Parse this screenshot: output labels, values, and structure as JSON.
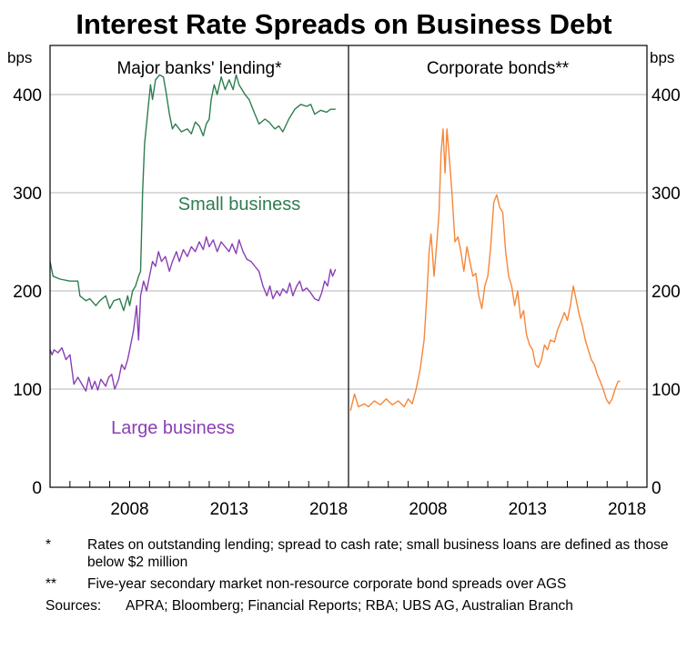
{
  "title": "Interest Rate Spreads on Business Debt",
  "notes": [
    {
      "mark": "*",
      "text": "Rates on outstanding lending; spread to cash rate; small business loans are defined as those below $2 million"
    },
    {
      "mark": "**",
      "text": "Five-year secondary market non-resource corporate bond spreads over AGS"
    }
  ],
  "sources": {
    "label": "Sources:",
    "text": "APRA; Bloomberg; Financial Reports; RBA; UBS AG, Australian Branch"
  },
  "chart_data": [
    {
      "type": "line",
      "title": "Major banks' lending*",
      "ylabel": "bps",
      "ylim": [
        0,
        450
      ],
      "yticks": [
        0,
        100,
        200,
        300,
        400
      ],
      "xlim": [
        2004.0,
        2019.0
      ],
      "xticks": [
        2008,
        2013,
        2018
      ],
      "grid": true,
      "series": [
        {
          "name": "Small business",
          "color": "#2e7d4f",
          "points": [
            [
              2004.0,
              230
            ],
            [
              2004.15,
              215
            ],
            [
              2004.5,
              212
            ],
            [
              2005.0,
              210
            ],
            [
              2005.4,
              210
            ],
            [
              2005.5,
              195
            ],
            [
              2005.8,
              190
            ],
            [
              2006.0,
              192
            ],
            [
              2006.3,
              185
            ],
            [
              2006.5,
              190
            ],
            [
              2006.8,
              195
            ],
            [
              2007.0,
              182
            ],
            [
              2007.2,
              190
            ],
            [
              2007.5,
              192
            ],
            [
              2007.7,
              180
            ],
            [
              2007.9,
              195
            ],
            [
              2008.0,
              185
            ],
            [
              2008.15,
              200
            ],
            [
              2008.3,
              205
            ],
            [
              2008.45,
              215
            ],
            [
              2008.55,
              220
            ],
            [
              2008.65,
              300
            ],
            [
              2008.75,
              350
            ],
            [
              2008.85,
              370
            ],
            [
              2008.95,
              390
            ],
            [
              2009.05,
              410
            ],
            [
              2009.15,
              395
            ],
            [
              2009.3,
              415
            ],
            [
              2009.5,
              420
            ],
            [
              2009.7,
              418
            ],
            [
              2009.85,
              400
            ],
            [
              2010.0,
              380
            ],
            [
              2010.15,
              365
            ],
            [
              2010.3,
              370
            ],
            [
              2010.6,
              362
            ],
            [
              2010.9,
              365
            ],
            [
              2011.1,
              360
            ],
            [
              2011.3,
              372
            ],
            [
              2011.5,
              368
            ],
            [
              2011.7,
              358
            ],
            [
              2011.85,
              370
            ],
            [
              2012.0,
              375
            ],
            [
              2012.1,
              395
            ],
            [
              2012.25,
              410
            ],
            [
              2012.4,
              400
            ],
            [
              2012.6,
              418
            ],
            [
              2012.8,
              405
            ],
            [
              2013.0,
              415
            ],
            [
              2013.2,
              405
            ],
            [
              2013.35,
              420
            ],
            [
              2013.5,
              410
            ],
            [
              2013.8,
              400
            ],
            [
              2014.0,
              395
            ],
            [
              2014.2,
              385
            ],
            [
              2014.5,
              370
            ],
            [
              2014.8,
              375
            ],
            [
              2015.0,
              372
            ],
            [
              2015.3,
              365
            ],
            [
              2015.5,
              368
            ],
            [
              2015.7,
              362
            ],
            [
              2016.0,
              375
            ],
            [
              2016.3,
              385
            ],
            [
              2016.6,
              390
            ],
            [
              2016.9,
              388
            ],
            [
              2017.1,
              390
            ],
            [
              2017.3,
              380
            ],
            [
              2017.6,
              384
            ],
            [
              2017.9,
              382
            ],
            [
              2018.1,
              385
            ],
            [
              2018.35,
              385
            ]
          ]
        },
        {
          "name": "Large business",
          "color": "#8a3fb6",
          "points": [
            [
              2004.0,
              140
            ],
            [
              2004.1,
              135
            ],
            [
              2004.2,
              140
            ],
            [
              2004.4,
              137
            ],
            [
              2004.6,
              142
            ],
            [
              2004.8,
              130
            ],
            [
              2005.0,
              135
            ],
            [
              2005.2,
              105
            ],
            [
              2005.4,
              112
            ],
            [
              2005.6,
              105
            ],
            [
              2005.8,
              98
            ],
            [
              2005.95,
              112
            ],
            [
              2006.1,
              100
            ],
            [
              2006.25,
              108
            ],
            [
              2006.4,
              99
            ],
            [
              2006.55,
              110
            ],
            [
              2006.8,
              103
            ],
            [
              2006.95,
              112
            ],
            [
              2007.1,
              115
            ],
            [
              2007.25,
              100
            ],
            [
              2007.45,
              110
            ],
            [
              2007.6,
              125
            ],
            [
              2007.75,
              120
            ],
            [
              2007.9,
              130
            ],
            [
              2008.0,
              140
            ],
            [
              2008.2,
              160
            ],
            [
              2008.35,
              185
            ],
            [
              2008.45,
              150
            ],
            [
              2008.55,
              195
            ],
            [
              2008.7,
              210
            ],
            [
              2008.85,
              200
            ],
            [
              2009.0,
              215
            ],
            [
              2009.15,
              230
            ],
            [
              2009.3,
              225
            ],
            [
              2009.45,
              240
            ],
            [
              2009.6,
              230
            ],
            [
              2009.8,
              235
            ],
            [
              2010.0,
              220
            ],
            [
              2010.15,
              230
            ],
            [
              2010.35,
              240
            ],
            [
              2010.5,
              230
            ],
            [
              2010.7,
              242
            ],
            [
              2010.9,
              235
            ],
            [
              2011.1,
              245
            ],
            [
              2011.3,
              240
            ],
            [
              2011.5,
              250
            ],
            [
              2011.7,
              242
            ],
            [
              2011.85,
              255
            ],
            [
              2012.0,
              245
            ],
            [
              2012.2,
              252
            ],
            [
              2012.4,
              240
            ],
            [
              2012.6,
              250
            ],
            [
              2012.8,
              245
            ],
            [
              2013.0,
              240
            ],
            [
              2013.15,
              248
            ],
            [
              2013.35,
              238
            ],
            [
              2013.5,
              252
            ],
            [
              2013.7,
              240
            ],
            [
              2013.9,
              232
            ],
            [
              2014.1,
              230
            ],
            [
              2014.3,
              225
            ],
            [
              2014.5,
              220
            ],
            [
              2014.7,
              205
            ],
            [
              2014.9,
              195
            ],
            [
              2015.05,
              205
            ],
            [
              2015.2,
              192
            ],
            [
              2015.4,
              200
            ],
            [
              2015.55,
              195
            ],
            [
              2015.7,
              202
            ],
            [
              2015.9,
              198
            ],
            [
              2016.05,
              208
            ],
            [
              2016.2,
              195
            ],
            [
              2016.4,
              205
            ],
            [
              2016.55,
              210
            ],
            [
              2016.7,
              200
            ],
            [
              2016.9,
              203
            ],
            [
              2017.1,
              198
            ],
            [
              2017.3,
              192
            ],
            [
              2017.5,
              190
            ],
            [
              2017.65,
              198
            ],
            [
              2017.8,
              210
            ],
            [
              2017.95,
              205
            ],
            [
              2018.1,
              222
            ],
            [
              2018.2,
              215
            ],
            [
              2018.35,
              222
            ]
          ]
        }
      ]
    },
    {
      "type": "line",
      "title": "Corporate bonds**",
      "ylabel": "bps",
      "ylim": [
        0,
        450
      ],
      "yticks": [
        0,
        100,
        200,
        300,
        400
      ],
      "xlim": [
        2004.0,
        2019.0
      ],
      "xticks": [
        2008,
        2013,
        2018
      ],
      "grid": true,
      "series": [
        {
          "name": "Corporate bonds",
          "color": "#f5873a",
          "points": [
            [
              2004.1,
              78
            ],
            [
              2004.3,
              95
            ],
            [
              2004.5,
              82
            ],
            [
              2004.8,
              85
            ],
            [
              2005.0,
              82
            ],
            [
              2005.3,
              88
            ],
            [
              2005.6,
              84
            ],
            [
              2005.9,
              90
            ],
            [
              2006.2,
              84
            ],
            [
              2006.5,
              88
            ],
            [
              2006.8,
              82
            ],
            [
              2007.0,
              90
            ],
            [
              2007.2,
              85
            ],
            [
              2007.4,
              100
            ],
            [
              2007.6,
              120
            ],
            [
              2007.8,
              150
            ],
            [
              2007.95,
              200
            ],
            [
              2008.05,
              240
            ],
            [
              2008.15,
              258
            ],
            [
              2008.3,
              215
            ],
            [
              2008.45,
              252
            ],
            [
              2008.55,
              280
            ],
            [
              2008.65,
              340
            ],
            [
              2008.75,
              365
            ],
            [
              2008.85,
              320
            ],
            [
              2008.95,
              365
            ],
            [
              2009.05,
              340
            ],
            [
              2009.2,
              300
            ],
            [
              2009.35,
              250
            ],
            [
              2009.5,
              255
            ],
            [
              2009.65,
              240
            ],
            [
              2009.8,
              220
            ],
            [
              2009.95,
              245
            ],
            [
              2010.1,
              230
            ],
            [
              2010.25,
              215
            ],
            [
              2010.4,
              218
            ],
            [
              2010.55,
              195
            ],
            [
              2010.7,
              182
            ],
            [
              2010.85,
              205
            ],
            [
              2011.0,
              215
            ],
            [
              2011.15,
              245
            ],
            [
              2011.3,
              290
            ],
            [
              2011.45,
              298
            ],
            [
              2011.6,
              285
            ],
            [
              2011.75,
              280
            ],
            [
              2011.9,
              240
            ],
            [
              2012.05,
              215
            ],
            [
              2012.2,
              205
            ],
            [
              2012.35,
              185
            ],
            [
              2012.5,
              200
            ],
            [
              2012.65,
              172
            ],
            [
              2012.8,
              180
            ],
            [
              2012.95,
              155
            ],
            [
              2013.1,
              145
            ],
            [
              2013.25,
              140
            ],
            [
              2013.4,
              125
            ],
            [
              2013.55,
              122
            ],
            [
              2013.7,
              130
            ],
            [
              2013.85,
              145
            ],
            [
              2014.0,
              140
            ],
            [
              2014.15,
              150
            ],
            [
              2014.35,
              148
            ],
            [
              2014.5,
              160
            ],
            [
              2014.7,
              170
            ],
            [
              2014.85,
              178
            ],
            [
              2015.0,
              170
            ],
            [
              2015.15,
              185
            ],
            [
              2015.3,
              205
            ],
            [
              2015.45,
              190
            ],
            [
              2015.6,
              175
            ],
            [
              2015.75,
              165
            ],
            [
              2015.9,
              150
            ],
            [
              2016.05,
              140
            ],
            [
              2016.2,
              130
            ],
            [
              2016.35,
              125
            ],
            [
              2016.5,
              115
            ],
            [
              2016.65,
              108
            ],
            [
              2016.8,
              100
            ],
            [
              2016.95,
              90
            ],
            [
              2017.1,
              85
            ],
            [
              2017.25,
              90
            ],
            [
              2017.4,
              100
            ],
            [
              2017.55,
              108
            ],
            [
              2017.65,
              108
            ]
          ]
        }
      ]
    }
  ],
  "series_labels": {
    "small": "Small business",
    "large": "Large business"
  }
}
